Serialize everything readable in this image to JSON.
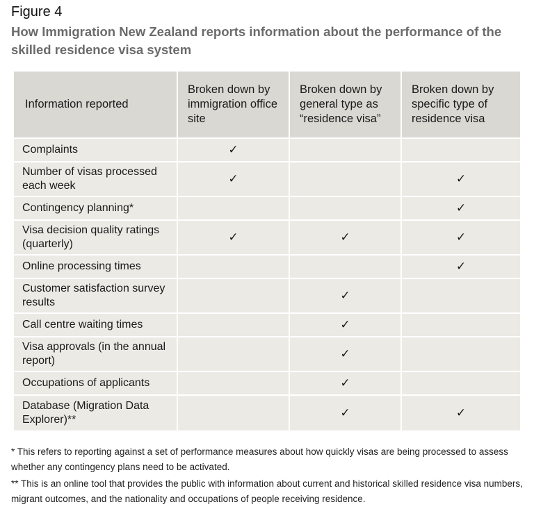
{
  "figure_label": "Figure 4",
  "title": "How Immigration New Zealand reports information about the performance of the skilled residence visa system",
  "table": {
    "headers": [
      "Information reported",
      "Broken down by immigration office site",
      "Broken down by general type as “residence visa”",
      "Broken down by specific type of residence visa"
    ],
    "check_symbol": "✓",
    "rows": [
      {
        "label": "Complaints",
        "marks": [
          "✓",
          "",
          ""
        ],
        "height": 34
      },
      {
        "label": "Number of visas processed each week",
        "marks": [
          "✓",
          "",
          "✓"
        ],
        "height": 50
      },
      {
        "label": "Contingency planning*",
        "marks": [
          "",
          "",
          "✓"
        ],
        "height": 34
      },
      {
        "label": "Visa decision quality ratings (quarterly)",
        "marks": [
          "✓",
          "✓",
          "✓"
        ],
        "height": 50
      },
      {
        "label": "Online processing times",
        "marks": [
          "",
          "",
          "✓"
        ],
        "height": 34
      },
      {
        "label": "Customer satisfaction survey results",
        "marks": [
          "",
          "✓",
          ""
        ],
        "height": 50
      },
      {
        "label": "Call centre waiting times",
        "marks": [
          "",
          "✓",
          ""
        ],
        "height": 34
      },
      {
        "label": "Visa approvals (in the annual report)",
        "marks": [
          "",
          "✓",
          ""
        ],
        "height": 50
      },
      {
        "label": "Occupations of applicants",
        "marks": [
          "",
          "✓",
          ""
        ],
        "height": 34
      },
      {
        "label": "Database (Migration Data Explorer)**",
        "marks": [
          "",
          "✓",
          "✓"
        ],
        "height": 52
      }
    ]
  },
  "footnotes": [
    {
      "text": "* This refers to reporting against a set of performance measures about how quickly visas are being processed to assess whether any contingency plans need to be activated.",
      "top": 640
    },
    {
      "text": "** This is an online tool that provides the public with information about current and historical skilled residence visa numbers, migrant outcomes, and the nationality and occupations of people receiving residence.",
      "top": 686
    }
  ]
}
